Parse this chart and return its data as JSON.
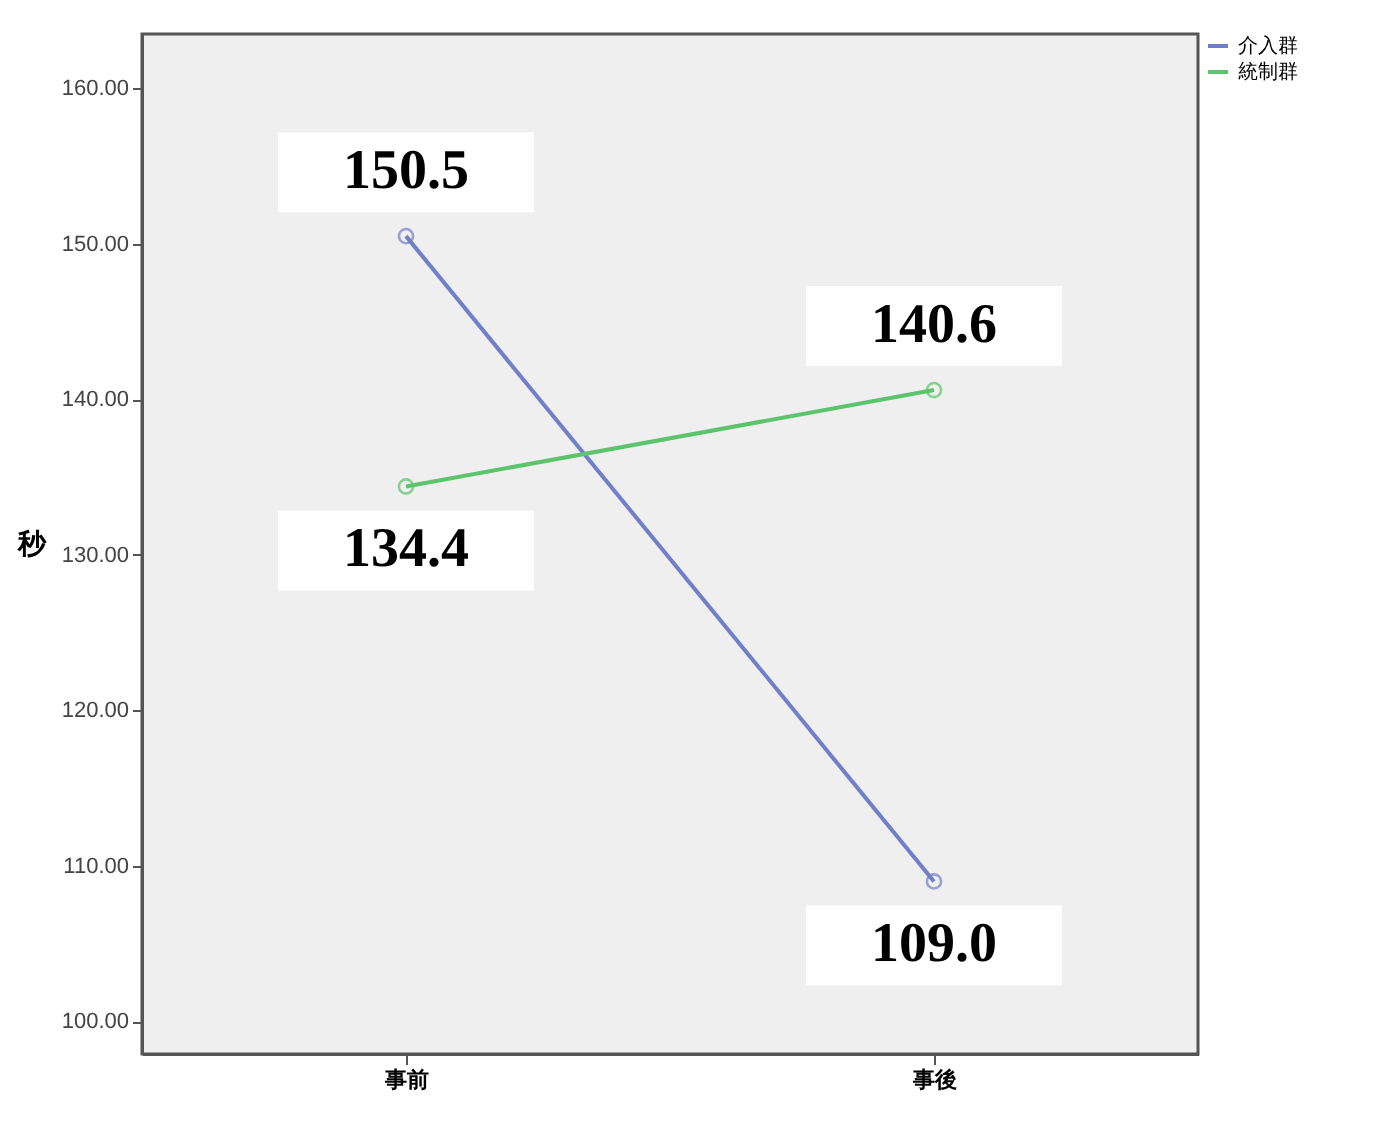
{
  "chart_data": {
    "type": "line",
    "ylabel": "秒",
    "categories": [
      "事前",
      "事後"
    ],
    "series": [
      {
        "name": "介入群",
        "color": "#6f7fc8",
        "values": [
          150.5,
          109.0
        ],
        "value_labels": [
          "150.5",
          "109.0"
        ]
      },
      {
        "name": "統制群",
        "color": "#5cc46c",
        "values": [
          134.4,
          140.6
        ],
        "value_labels": [
          "134.4",
          "140.6"
        ]
      }
    ],
    "ylim": [
      97.9,
      163.5
    ],
    "yticks": [
      {
        "value": 100,
        "label": "100.00"
      },
      {
        "value": 110,
        "label": "110.00"
      },
      {
        "value": 120,
        "label": "120.00"
      },
      {
        "value": 130,
        "label": "130.00"
      },
      {
        "value": 140,
        "label": "140.00"
      },
      {
        "value": 150,
        "label": "150.00"
      },
      {
        "value": 160,
        "label": "160.00"
      }
    ],
    "marker": "circle",
    "line_style": "solid",
    "legend": "top right",
    "grid": false
  }
}
